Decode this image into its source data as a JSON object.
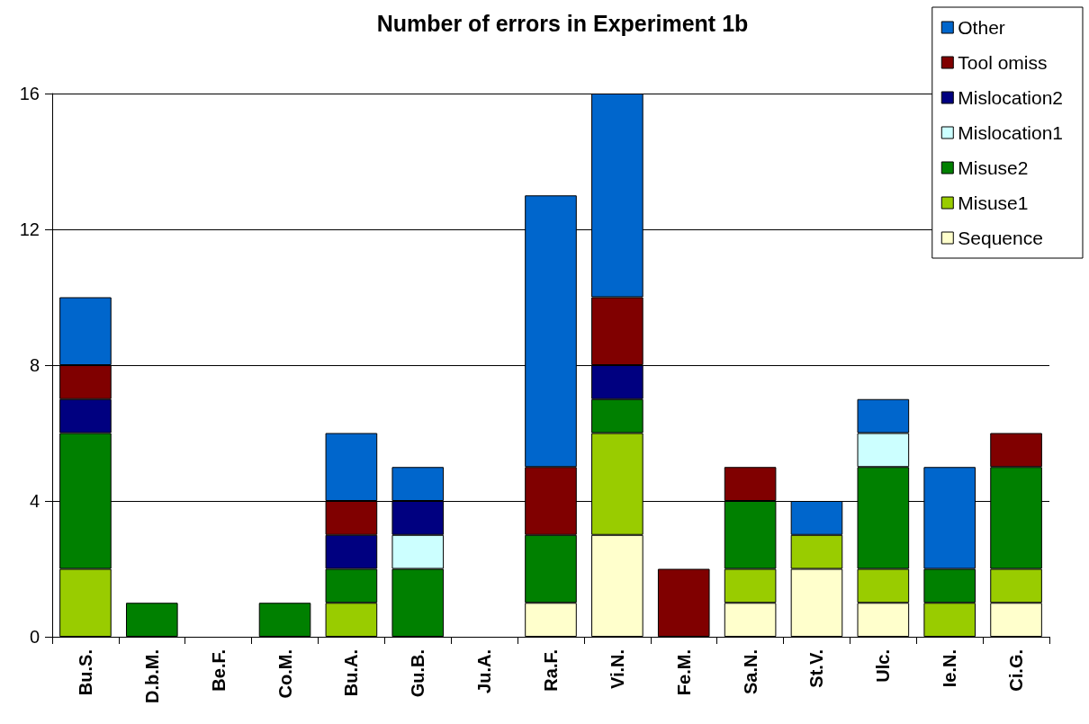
{
  "chart_data": {
    "type": "bar",
    "title": "Number of errors in Experiment 1b",
    "stacked": true,
    "categories": [
      "Bu.S.",
      "D.b.M.",
      "Be.F.",
      "Co.M.",
      "Bu.A.",
      "Gu.B.",
      "Ju.A.",
      "Ra.F.",
      "Vi.N.",
      "Fe.M.",
      "Sa.N.",
      "St.V.",
      "Ulc.",
      "Ie.N.",
      "Ci.G."
    ],
    "series": [
      {
        "name": "Sequence",
        "color": "#ffffcc",
        "values": [
          0,
          0,
          0,
          0,
          0,
          0,
          0,
          1,
          3,
          0,
          1,
          2,
          1,
          0,
          1
        ]
      },
      {
        "name": "Misuse1",
        "color": "#99cc00",
        "values": [
          2,
          0,
          0,
          0,
          1,
          0,
          0,
          0,
          3,
          0,
          1,
          1,
          1,
          1,
          1
        ]
      },
      {
        "name": "Misuse2",
        "color": "#008000",
        "values": [
          4,
          1,
          0,
          1,
          1,
          2,
          0,
          2,
          1,
          0,
          2,
          0,
          3,
          1,
          3
        ]
      },
      {
        "name": "Mislocation1",
        "color": "#ccffff",
        "values": [
          0,
          0,
          0,
          0,
          0,
          1,
          0,
          0,
          0,
          0,
          0,
          0,
          1,
          0,
          0
        ]
      },
      {
        "name": "Mislocation2",
        "color": "#000080",
        "values": [
          1,
          0,
          0,
          0,
          1,
          1,
          0,
          0,
          1,
          0,
          0,
          0,
          0,
          0,
          0
        ]
      },
      {
        "name": "Tool omiss",
        "color": "#800000",
        "values": [
          1,
          0,
          0,
          0,
          1,
          0,
          0,
          2,
          2,
          2,
          1,
          0,
          0,
          0,
          1
        ]
      },
      {
        "name": "Other",
        "color": "#0066cc",
        "values": [
          2,
          0,
          0,
          0,
          2,
          1,
          0,
          8,
          6,
          0,
          0,
          1,
          1,
          3,
          0
        ]
      }
    ],
    "ylim": [
      0,
      16
    ],
    "yticks": [
      0,
      4,
      8,
      12,
      16
    ],
    "grid": "y",
    "legend": "top right"
  }
}
